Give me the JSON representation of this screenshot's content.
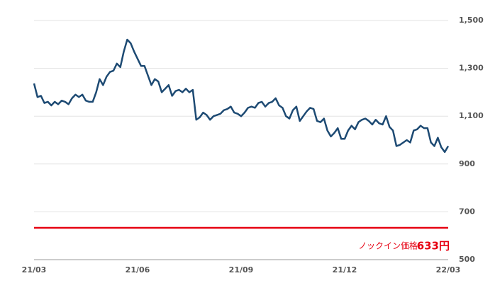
{
  "chart_data": {
    "type": "line",
    "categories": [
      "21/03",
      null,
      null,
      null,
      null,
      null,
      null,
      null,
      null,
      null,
      null,
      null,
      null,
      null,
      null,
      null,
      null,
      null,
      null,
      null,
      null,
      null,
      null,
      null,
      null,
      null,
      null,
      null,
      null,
      null,
      "21/06",
      null,
      null,
      null,
      null,
      null,
      null,
      null,
      null,
      null,
      null,
      null,
      null,
      null,
      null,
      null,
      null,
      null,
      null,
      null,
      null,
      null,
      null,
      null,
      null,
      null,
      null,
      null,
      null,
      null,
      "21/09",
      null,
      null,
      null,
      null,
      null,
      null,
      null,
      null,
      null,
      null,
      null,
      null,
      null,
      null,
      null,
      null,
      null,
      null,
      null,
      null,
      null,
      null,
      null,
      null,
      null,
      null,
      null,
      null,
      null,
      "21/12",
      null,
      null,
      null,
      null,
      null,
      null,
      null,
      null,
      null,
      null,
      null,
      null,
      null,
      null,
      null,
      null,
      null,
      null,
      null,
      null,
      null,
      null,
      null,
      null,
      null,
      null,
      null,
      null,
      null,
      "22/03"
    ],
    "series": [
      {
        "color": "#1d4a73",
        "values": [
          1237,
          1180,
          1185,
          1155,
          1160,
          1145,
          1160,
          1150,
          1165,
          1160,
          1150,
          1175,
          1190,
          1180,
          1190,
          1165,
          1160,
          1160,
          1200,
          1255,
          1230,
          1265,
          1285,
          1290,
          1320,
          1305,
          1370,
          1420,
          1405,
          1370,
          1340,
          1310,
          1310,
          1270,
          1230,
          1255,
          1245,
          1200,
          1215,
          1230,
          1185,
          1205,
          1210,
          1200,
          1215,
          1200,
          1210,
          1085,
          1095,
          1115,
          1105,
          1085,
          1100,
          1105,
          1110,
          1125,
          1130,
          1140,
          1115,
          1110,
          1100,
          1115,
          1135,
          1140,
          1135,
          1155,
          1160,
          1140,
          1155,
          1160,
          1175,
          1145,
          1135,
          1100,
          1090,
          1125,
          1140,
          1080,
          1100,
          1120,
          1135,
          1130,
          1080,
          1075,
          1090,
          1040,
          1015,
          1030,
          1050,
          1005,
          1005,
          1040,
          1060,
          1045,
          1075,
          1085,
          1090,
          1080,
          1065,
          1085,
          1070,
          1065,
          1100,
          1055,
          1040,
          975,
          980,
          990,
          1000,
          990,
          1040,
          1045,
          1060,
          1050,
          1050,
          990,
          975,
          1010,
          970,
          950,
          975
        ]
      }
    ],
    "ylim": [
      500,
      1500
    ],
    "yticks": [
      500,
      {
        "value": 700,
        "label": "700"
      },
      {
        "value": 900,
        "label": "900"
      },
      {
        "value": 1100,
        "label": "1,100"
      },
      {
        "value": 1300,
        "label": "1,300"
      },
      {
        "value": 1500,
        "label": "1,500"
      }
    ],
    "grid": true,
    "knock_in": {
      "label": "ノックイン価格",
      "value": 633,
      "value_label": "633円",
      "color": "#e60012"
    }
  }
}
